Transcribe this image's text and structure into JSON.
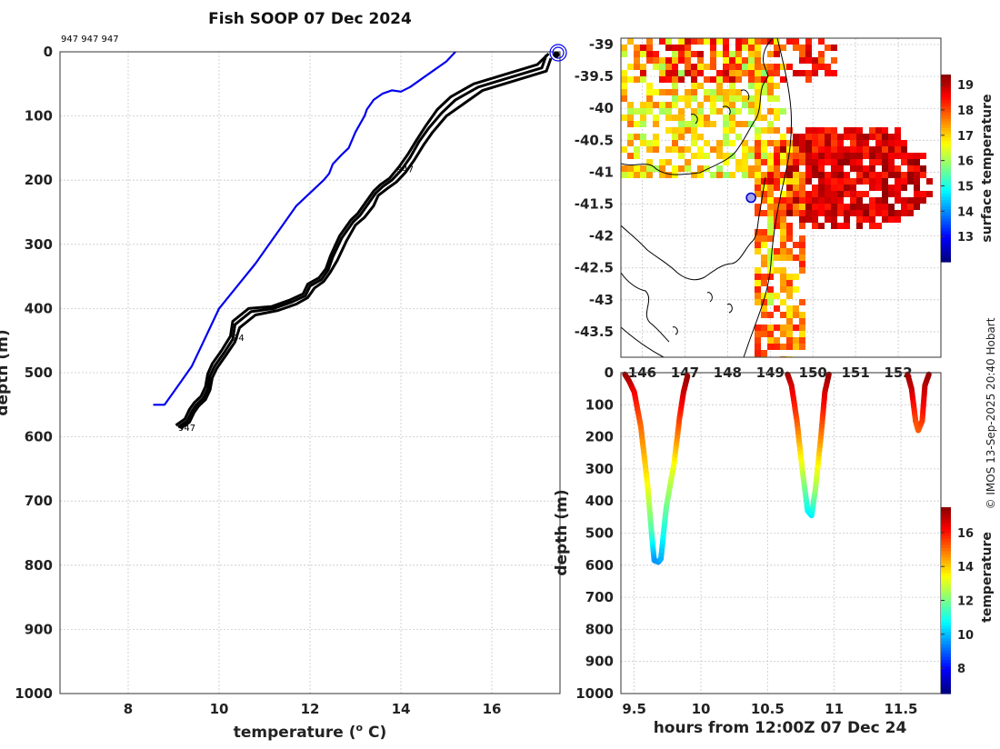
{
  "credit": "© IMOS 13-Sep-2025 20:40 Hobart",
  "chart_data": [
    {
      "id": "profile",
      "type": "line",
      "title": "Fish SOOP 07 Dec 2024",
      "xlabel": "temperature (",
      "xlabel_sup": "o",
      "xlabel_end": " C)",
      "ylabel": "depth (m)",
      "xlim": [
        6.5,
        17.5
      ],
      "ylim": [
        0,
        1000
      ],
      "y_reversed": true,
      "x_ticks": [
        8,
        10,
        12,
        14,
        16
      ],
      "y_ticks": [
        0,
        100,
        200,
        300,
        400,
        500,
        600,
        700,
        800,
        900,
        1000
      ],
      "grid": true,
      "top_label": "947 947 947",
      "annotations": [
        {
          "text": "947",
          "x": 13.9,
          "y": 182
        },
        {
          "text": "94",
          "x": 10.3,
          "y": 445
        },
        {
          "text": "947",
          "x": 9.1,
          "y": 585
        }
      ],
      "series": [
        {
          "name": "climatology",
          "color": "#0000ee",
          "x": [
            15.2,
            15.0,
            14.7,
            14.5,
            14.3,
            14.2,
            14.0,
            13.8,
            13.6,
            13.4,
            13.25,
            13.2,
            13.0,
            12.85,
            12.7,
            12.5,
            12.42,
            12.3,
            12.0,
            11.7,
            11.4,
            11.1,
            10.8,
            10.4,
            10.0,
            9.8,
            9.6,
            9.4,
            9.2,
            9.0,
            8.8,
            8.55
          ],
          "y": [
            0,
            15,
            30,
            40,
            50,
            55,
            62,
            60,
            65,
            75,
            90,
            100,
            125,
            150,
            160,
            175,
            190,
            200,
            220,
            240,
            270,
            300,
            330,
            365,
            400,
            430,
            460,
            490,
            510,
            530,
            550,
            550
          ]
        },
        {
          "name": "profile 1",
          "color": "#000000",
          "x": [
            17.2,
            17.1,
            16.4,
            15.7,
            15.2,
            14.9,
            14.6,
            14.4,
            14.2,
            14.0,
            13.8,
            13.6,
            13.45,
            13.3,
            13.1,
            12.95,
            12.7,
            12.5,
            12.4,
            12.25,
            12.0,
            11.9,
            11.6,
            11.2,
            10.7,
            10.35,
            10.3,
            10.1,
            9.9,
            9.8,
            9.75,
            9.65,
            9.5,
            9.4,
            9.3,
            9.1
          ],
          "y": [
            5,
            25,
            40,
            55,
            75,
            95,
            120,
            140,
            165,
            185,
            200,
            210,
            220,
            235,
            255,
            265,
            290,
            320,
            340,
            355,
            365,
            380,
            390,
            400,
            405,
            425,
            448,
            470,
            490,
            505,
            525,
            540,
            550,
            560,
            575,
            585
          ]
        },
        {
          "name": "profile 2",
          "color": "#000000",
          "x": [
            17.3,
            17.2,
            16.5,
            15.8,
            15.4,
            15.0,
            14.7,
            14.5,
            14.3,
            14.1,
            13.9,
            13.7,
            13.5,
            13.4,
            13.2,
            13.0,
            12.8,
            12.6,
            12.45,
            12.3,
            12.1,
            11.95,
            11.7,
            11.3,
            10.8,
            10.45,
            10.35,
            10.15,
            9.95,
            9.85,
            9.8,
            9.7,
            9.55,
            9.45,
            9.35,
            9.15
          ],
          "y": [
            10,
            30,
            45,
            60,
            80,
            100,
            125,
            145,
            168,
            188,
            203,
            213,
            224,
            240,
            258,
            270,
            295,
            325,
            343,
            358,
            368,
            383,
            393,
            403,
            410,
            430,
            452,
            473,
            493,
            508,
            527,
            542,
            552,
            562,
            577,
            587
          ]
        },
        {
          "name": "profile 3",
          "color": "#000000",
          "x": [
            17.25,
            17.0,
            16.3,
            15.6,
            15.1,
            14.8,
            14.55,
            14.35,
            14.15,
            13.95,
            13.75,
            13.55,
            13.4,
            13.25,
            13.05,
            12.9,
            12.65,
            12.45,
            12.35,
            12.2,
            11.95,
            11.85,
            11.55,
            11.15,
            10.65,
            10.3,
            10.25,
            10.05,
            9.85,
            9.75,
            9.7,
            9.6,
            9.45,
            9.35,
            9.25,
            9.05
          ],
          "y": [
            3,
            20,
            35,
            50,
            70,
            90,
            115,
            137,
            160,
            180,
            197,
            207,
            217,
            232,
            252,
            262,
            287,
            318,
            338,
            352,
            362,
            377,
            387,
            397,
            400,
            420,
            443,
            466,
            486,
            502,
            522,
            537,
            547,
            557,
            572,
            582
          ]
        }
      ]
    },
    {
      "id": "map",
      "type": "heatmap",
      "ylabel_ticks": [
        -39,
        -39.5,
        -40,
        -40.5,
        -41,
        -41.5,
        -42,
        -42.5,
        -43,
        -43.5
      ],
      "x_ticks": [
        146,
        147,
        148,
        149,
        150,
        151,
        152
      ],
      "x_tick_labels": [
        "146",
        "147",
        "148",
        "149",
        "150",
        "151",
        "152"
      ],
      "xlim": [
        145.5,
        153
      ],
      "ylim": [
        -43.9,
        -38.9
      ],
      "colorbar_label": "surface temperature",
      "colorbar_ticks": [
        13,
        14,
        15,
        16,
        17,
        18,
        19
      ],
      "colorbar_range": [
        12,
        19.4
      ],
      "marker": {
        "lon": 148.55,
        "lat": -41.4,
        "color": "#0000cc"
      }
    },
    {
      "id": "section",
      "type": "scatter",
      "xlabel": "hours from 12:00Z 07 Dec 24",
      "ylabel": "depth (m)",
      "xlim": [
        9.4,
        11.8
      ],
      "ylim": [
        0,
        1000
      ],
      "y_reversed": true,
      "x_ticks": [
        9.5,
        10,
        10.5,
        11,
        11.5
      ],
      "x_tick_labels": [
        "9.5",
        "10",
        "10.5",
        "11",
        "11.5"
      ],
      "y_ticks": [
        0,
        100,
        200,
        300,
        400,
        500,
        600,
        700,
        800,
        900,
        1000
      ],
      "colorbar_label": "temperature",
      "colorbar_ticks": [
        8,
        10,
        12,
        14,
        16
      ],
      "colorbar_range": [
        6.5,
        17.5
      ],
      "dives": [
        {
          "t": [
            9.43,
            9.46,
            9.5,
            9.55,
            9.6,
            9.63,
            9.65,
            9.68,
            9.7,
            9.74,
            9.8,
            9.84,
            9.87,
            9.9
          ],
          "d": [
            5,
            25,
            60,
            170,
            350,
            500,
            585,
            590,
            580,
            420,
            280,
            140,
            60,
            10
          ],
          "temp": [
            17.2,
            17.0,
            16.3,
            15.0,
            13.4,
            11.4,
            9.6,
            9.5,
            9.7,
            11.7,
            13.3,
            15.5,
            16.6,
            17.2
          ]
        },
        {
          "t": [
            10.65,
            10.68,
            10.72,
            10.76,
            10.8,
            10.83,
            10.86,
            10.9,
            10.93,
            10.96
          ],
          "d": [
            5,
            40,
            150,
            300,
            430,
            445,
            360,
            200,
            60,
            5
          ],
          "temp": [
            17.2,
            16.6,
            15.3,
            13.0,
            10.8,
            10.4,
            12.3,
            14.6,
            16.5,
            17.2
          ]
        },
        {
          "t": [
            11.55,
            11.58,
            11.61,
            11.63,
            11.66,
            11.68,
            11.71
          ],
          "d": [
            5,
            50,
            150,
            180,
            150,
            40,
            5
          ],
          "temp": [
            17.2,
            16.8,
            15.4,
            15.1,
            15.5,
            16.8,
            17.2
          ]
        }
      ]
    }
  ]
}
